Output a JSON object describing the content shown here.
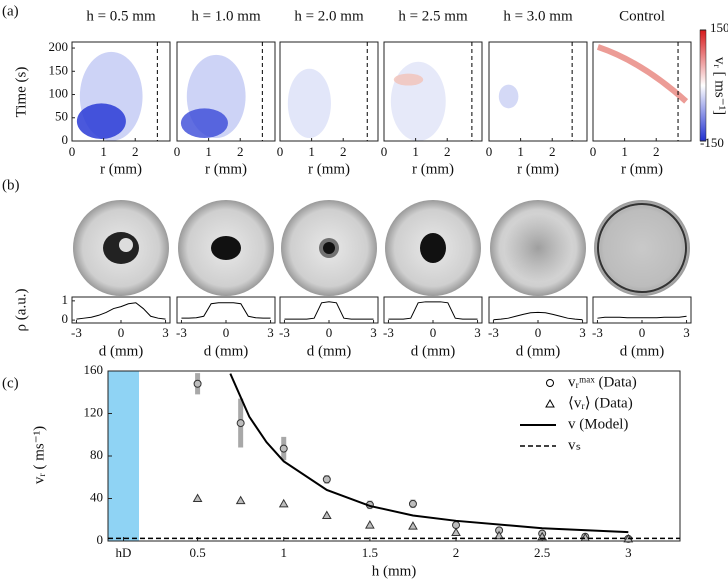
{
  "chart_data": [
    {
      "type": "heatmap",
      "panel_label": "(a)",
      "ylabel": "Time (s)",
      "xlabel": "r (mm)",
      "xlim": [
        0,
        3.1
      ],
      "ylim": [
        0,
        213
      ],
      "xticks": [
        0,
        1,
        2
      ],
      "yticks": [
        0,
        50,
        100,
        150,
        200
      ],
      "panels": [
        {
          "title": "h = 0.5 mm",
          "dashed_r": 2.7
        },
        {
          "title": "h = 1.0 mm",
          "dashed_r": 2.7
        },
        {
          "title": "h = 2.0 mm",
          "dashed_r": 2.76
        },
        {
          "title": "h = 2.5 mm",
          "dashed_r": 2.78
        },
        {
          "title": "h = 3.0 mm",
          "dashed_r": 2.63
        },
        {
          "title": "Control",
          "dashed_r": 2.69
        }
      ],
      "colorbar": {
        "label": "vᵣ [ ms⁻¹]",
        "lim": [
          -150,
          150
        ],
        "ticks": [
          -150,
          150
        ]
      }
    },
    {
      "type": "line",
      "panel_label": "(b)",
      "ylabel": "ρ (a.u.)",
      "xlabel": "d (mm)",
      "xlim": [
        -3.3,
        3.3
      ],
      "ylim": [
        -0.15,
        1.2
      ],
      "xticks": [
        -3,
        0,
        3
      ],
      "yticks": [
        0,
        1
      ],
      "x": [
        -3,
        -2.5,
        -2,
        -1.5,
        -1,
        -0.5,
        0,
        0.5,
        1,
        1.5,
        2,
        2.5,
        3
      ],
      "series": [
        {
          "values": [
            0.05,
            0.1,
            0.15,
            0.25,
            0.4,
            0.6,
            0.7,
            0.85,
            0.9,
            0.6,
            0.2,
            0.1,
            0.05
          ]
        },
        {
          "values": [
            0.1,
            0.1,
            0.12,
            0.2,
            0.85,
            0.9,
            0.9,
            0.9,
            0.85,
            0.2,
            0.12,
            0.1,
            0.1
          ]
        },
        {
          "values": [
            0.05,
            0.05,
            0.05,
            0.05,
            0.1,
            0.9,
            0.95,
            0.9,
            0.1,
            0.05,
            0.05,
            0.05,
            0.05
          ]
        },
        {
          "values": [
            0.05,
            0.05,
            0.05,
            0.1,
            0.9,
            0.95,
            0.95,
            0.95,
            0.9,
            0.1,
            0.05,
            0.05,
            0.05
          ]
        },
        {
          "values": [
            0.02,
            0.05,
            0.1,
            0.2,
            0.3,
            0.38,
            0.4,
            0.38,
            0.3,
            0.2,
            0.1,
            0.05,
            0.02
          ]
        },
        {
          "values": [
            0.1,
            0.15,
            0.15,
            0.15,
            0.12,
            0.12,
            0.12,
            0.12,
            0.12,
            0.15,
            0.15,
            0.15,
            0.2
          ]
        }
      ]
    },
    {
      "type": "scatter",
      "panel_label": "(c)",
      "ylabel": "vᵣ ( ms⁻¹)",
      "xlabel": "h (mm)",
      "xlim": [
        -0.02,
        3.3
      ],
      "ylim": [
        0,
        160
      ],
      "xticks": [
        {
          "value": 0.07,
          "label": "hD"
        },
        0.5,
        1.0,
        1.5,
        2.0,
        2.5,
        3.0
      ],
      "yticks": [
        0,
        40,
        80,
        120,
        160
      ],
      "x": [
        0.5,
        0.75,
        1.0,
        1.25,
        1.5,
        1.75,
        2.0,
        2.25,
        2.5,
        2.75,
        3.0
      ],
      "series": [
        {
          "name": "vᵣᵐᵃˣ (Data)",
          "marker": "circle",
          "color": "#bdbdbd",
          "values": [
            148,
            111,
            87,
            58,
            34,
            35,
            15,
            10,
            7,
            4,
            2
          ],
          "errors": [
            10,
            23,
            11,
            4,
            4,
            4,
            3,
            3,
            2,
            2,
            2
          ]
        },
        {
          "name": "⟨vᵣ⟩ (Data)",
          "marker": "triangle",
          "color": "#bdbdbd",
          "values": [
            40,
            38,
            35,
            24,
            15,
            14,
            8,
            5,
            4,
            3,
            2
          ]
        },
        {
          "name": "v (Model)",
          "marker": "line",
          "color": "#000",
          "x": [
            0.69,
            0.8,
            0.9,
            1.0,
            1.25,
            1.5,
            1.75,
            2.0,
            2.5,
            3.0
          ],
          "values": [
            157.5,
            117,
            93,
            75,
            48,
            33,
            24,
            19,
            12,
            8.3
          ]
        },
        {
          "name": "vₛ",
          "marker": "dashed",
          "color": "#000",
          "value": 2.5
        }
      ]
    }
  ]
}
